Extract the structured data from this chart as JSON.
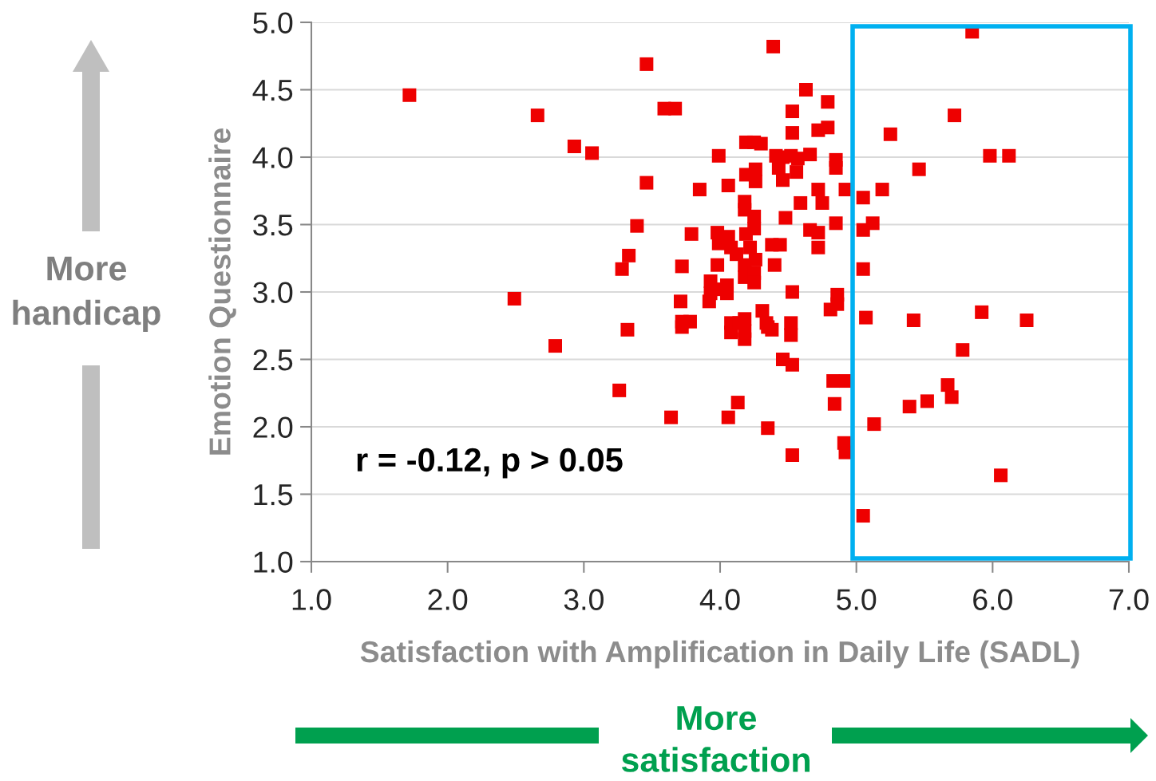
{
  "chart_data": {
    "type": "scatter",
    "xlabel": "Satisfaction with Amplification in Daily Life (SADL)",
    "ylabel": "Emotion Questionnaire",
    "annotations": [
      "r = -0.12, p > 0.05",
      "More handicap",
      "More satisfaction"
    ],
    "marker": "square",
    "grid": "y",
    "xlim": [
      1.0,
      7.0
    ],
    "ylim": [
      1.0,
      5.0
    ],
    "xticks": [
      {
        "value": 1.0,
        "label": "1.0"
      },
      {
        "value": 2.0,
        "label": "2.0"
      },
      {
        "value": 3.0,
        "label": "3.0"
      },
      {
        "value": 4.0,
        "label": "4.0"
      },
      {
        "value": 5.0,
        "label": "5.0"
      },
      {
        "value": 6.0,
        "label": "6.0"
      },
      {
        "value": 7.0,
        "label": "7.0"
      }
    ],
    "yticks": [
      {
        "value": 1.0,
        "label": "1.0"
      },
      {
        "value": 1.5,
        "label": "1.5"
      },
      {
        "value": 2.0,
        "label": "2.0"
      },
      {
        "value": 2.5,
        "label": "2.5"
      },
      {
        "value": 3.0,
        "label": "3.0"
      },
      {
        "value": 3.5,
        "label": "3.5"
      },
      {
        "value": 4.0,
        "label": "4.0"
      },
      {
        "value": 4.5,
        "label": "4.5"
      },
      {
        "value": 5.0,
        "label": "5.0"
      }
    ],
    "series": [
      {
        "color": "#ee0000",
        "x": [
          1.72,
          2.66,
          2.93,
          3.06,
          3.46,
          3.59,
          3.67,
          3.46,
          3.39,
          3.33,
          3.28,
          3.32,
          2.49,
          2.79,
          3.26,
          3.64,
          4.39,
          4.63,
          4.79,
          4.53,
          4.53,
          4.72,
          4.79,
          3.99,
          4.19,
          4.25,
          4.3,
          4.41,
          4.46,
          4.52,
          4.57,
          4.66,
          4.85,
          4.85,
          3.85,
          4.06,
          4.19,
          4.26,
          4.26,
          4.43,
          4.46,
          4.56,
          4.72,
          4.75,
          4.92,
          4.59,
          4.18,
          4.18,
          4.25,
          4.25,
          4.48,
          4.66,
          4.72,
          4.85,
          4.72,
          3.79,
          3.98,
          3.99,
          4.06,
          4.08,
          4.12,
          4.19,
          4.22,
          4.26,
          4.38,
          4.44,
          3.72,
          3.98,
          4.18,
          4.18,
          4.25,
          4.25,
          4.4,
          3.93,
          3.93,
          3.92,
          3.99,
          4.05,
          4.05,
          3.71,
          4.53,
          4.86,
          4.86,
          4.81,
          3.72,
          3.78,
          3.72,
          4.08,
          4.08,
          4.14,
          4.18,
          4.18,
          4.18,
          4.31,
          4.34,
          4.38,
          4.35,
          4.52,
          4.52,
          4.46,
          4.53,
          4.83,
          4.92,
          4.84,
          4.13,
          4.06,
          4.35,
          4.53,
          4.91,
          4.92,
          5.85,
          5.72,
          5.25,
          5.98,
          6.12,
          5.46,
          5.19,
          5.05,
          5.12,
          5.05,
          5.05,
          5.07,
          5.42,
          5.92,
          6.25,
          5.78,
          5.67,
          5.7,
          5.52,
          5.39,
          5.13,
          6.06,
          5.05
        ],
        "values": [
          4.46,
          4.31,
          4.08,
          4.03,
          4.69,
          4.36,
          4.36,
          3.81,
          3.49,
          3.27,
          3.17,
          2.72,
          2.95,
          2.6,
          2.27,
          2.07,
          4.82,
          4.5,
          4.41,
          4.34,
          4.18,
          4.2,
          4.22,
          4.01,
          4.11,
          4.11,
          4.1,
          4.01,
          4.0,
          4.01,
          3.99,
          4.02,
          3.98,
          3.92,
          3.76,
          3.79,
          3.87,
          3.91,
          3.82,
          3.92,
          3.83,
          3.89,
          3.76,
          3.66,
          3.76,
          3.66,
          3.67,
          3.61,
          3.56,
          3.47,
          3.55,
          3.46,
          3.44,
          3.51,
          3.33,
          3.43,
          3.44,
          3.36,
          3.41,
          3.33,
          3.28,
          3.43,
          3.33,
          3.24,
          3.35,
          3.35,
          3.19,
          3.2,
          3.2,
          3.11,
          3.14,
          3.07,
          3.2,
          3.08,
          2.99,
          2.93,
          3.02,
          3.05,
          2.99,
          2.93,
          3.0,
          2.98,
          2.91,
          2.87,
          2.78,
          2.78,
          2.74,
          2.77,
          2.7,
          2.77,
          2.8,
          2.65,
          2.71,
          2.86,
          2.77,
          2.72,
          2.74,
          2.77,
          2.68,
          2.5,
          2.46,
          2.34,
          2.34,
          2.17,
          2.18,
          2.07,
          1.99,
          1.79,
          1.88,
          1.81,
          4.93,
          4.31,
          4.17,
          4.01,
          4.01,
          3.91,
          3.76,
          3.7,
          3.51,
          3.46,
          3.17,
          2.81,
          2.79,
          2.85,
          2.79,
          2.57,
          2.31,
          2.22,
          2.19,
          2.15,
          2.02,
          1.64,
          1.34
        ]
      }
    ]
  }
}
